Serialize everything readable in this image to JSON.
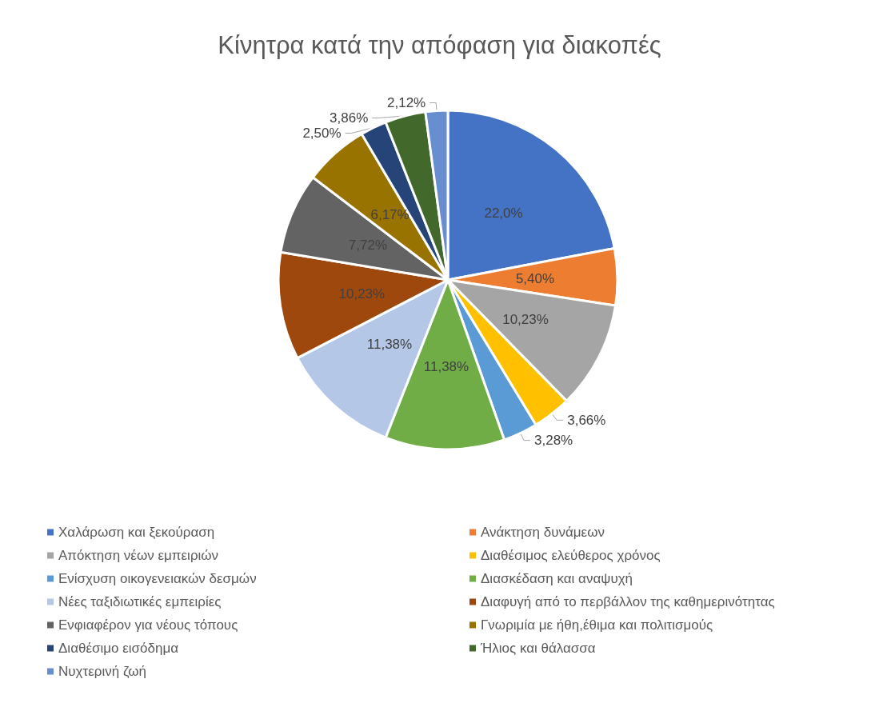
{
  "chart_data": {
    "type": "pie",
    "title": "Κίνητρα κατά την απόφαση για διακοπές",
    "categories": [
      "Χαλάρωση και ξεκούραση",
      "Ανάκτηση δυνάμεων",
      "Απόκτηση νέων εμπειριών",
      "Διαθέσιμος ελεύθερος χρόνος",
      "Ενίσχυση οικογενειακών δεσμών",
      "Διασκέδαση και αναψυχή",
      "Νέες ταξιδιωτικές εμπειρίες",
      "Διαφυγή από το περβάλλον της καθημερινότητας",
      "Ενφιαφέρον για νέους τόπους",
      "Γνωριμία με ήθη,έθιμα και πολιτισμούς",
      "Διαθέσιμο εισόδημα",
      "Ήλιος και θάλασσα",
      "Νυχτερινή ζωή"
    ],
    "values": [
      22.0,
      5.4,
      10.23,
      3.66,
      3.28,
      11.38,
      11.38,
      10.23,
      7.72,
      6.17,
      2.5,
      3.86,
      2.12
    ],
    "value_labels": [
      "22,0%",
      "5,40%",
      "10,23%",
      "3,66%",
      "3,28%",
      "11,38%",
      "11,38%",
      "10,23%",
      "7,72%",
      "6,17%",
      "2,50%",
      "3,86%",
      "2,12%"
    ],
    "colors": [
      "#4472c4",
      "#ed7d31",
      "#a5a5a5",
      "#ffc000",
      "#5b9bd5",
      "#70ad47",
      "#b4c7e7",
      "#9e480e",
      "#636363",
      "#997300",
      "#264478",
      "#43682b",
      "#698ed0"
    ],
    "legend": "bottom"
  }
}
